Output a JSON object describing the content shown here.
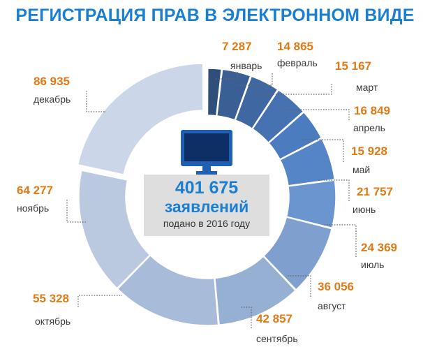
{
  "title": "РЕГИСТРАЦИЯ ПРАВ В ЭЛЕКТРОННОМ ВИДЕ",
  "center": {
    "total": "401 675",
    "unit": "заявлений",
    "caption": "подано в 2016 году"
  },
  "icons": {
    "center": "computer-monitor-icon"
  },
  "colors": {
    "title": "#1b7fd1",
    "values": "#e07a16",
    "center_box": "#dedede"
  },
  "chart_data": {
    "type": "pie",
    "variant": "donut",
    "title": "РЕГИСТРАЦИЯ ПРАВ В ЭЛЕКТРОННОМ ВИДЕ",
    "total": 401675,
    "categories": [
      "январь",
      "февраль",
      "март",
      "апрель",
      "май",
      "июнь",
      "июль",
      "август",
      "сентябрь",
      "октябрь",
      "ноябрь",
      "декабрь"
    ],
    "values": [
      7287,
      14865,
      15167,
      16849,
      15928,
      21757,
      24369,
      36056,
      42857,
      55328,
      64277,
      86935
    ],
    "labels": [
      "7 287",
      "14 865",
      "15 167",
      "16 849",
      "15 928",
      "21 757",
      "24 369",
      "36 056",
      "42 857",
      "55 328",
      "64 277",
      "86 935"
    ],
    "colors": [
      "#2f4f7a",
      "#3a5f94",
      "#3f68a2",
      "#4672b2",
      "#4b7cbf",
      "#5585c7",
      "#6a95ce",
      "#7f9fce",
      "#96b0d4",
      "#a8bcd9",
      "#bac9e0",
      "#ccd6e9"
    ],
    "exploded": "декабрь"
  }
}
